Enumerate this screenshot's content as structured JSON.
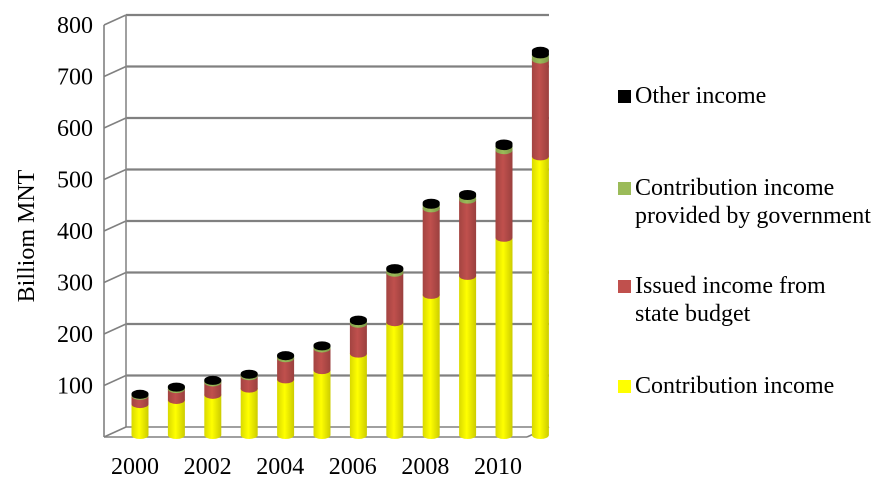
{
  "chart_data": {
    "type": "bar",
    "stacked": true,
    "ylabel": "Billiom MNT",
    "xlabel": "",
    "ylim": [
      0,
      800
    ],
    "yticks": [
      100,
      200,
      300,
      400,
      500,
      600,
      700,
      800
    ],
    "x_tick_labels": [
      "2000",
      "2002",
      "2004",
      "2006",
      "2008",
      "2010"
    ],
    "categories": [
      "2000",
      "2001",
      "2002",
      "2003",
      "2004",
      "2005",
      "2006",
      "2007",
      "2008",
      "2009",
      "2010",
      "2011"
    ],
    "series": [
      {
        "name": "Contribution income",
        "color": "#ffff00",
        "values": [
          60,
          68,
          78,
          90,
          108,
          126,
          158,
          219,
          272,
          309,
          383,
          541
        ]
      },
      {
        "name": "Issued income from state budget",
        "color": "#c0504d",
        "values": [
          16,
          21,
          24,
          24,
          41,
          42,
          58,
          96,
          168,
          148,
          170,
          188
        ]
      },
      {
        "name": "Contribution income provided by government",
        "color": "#9bbb59",
        "values": [
          2,
          3,
          3,
          3,
          4,
          4,
          5,
          6,
          7,
          7,
          8,
          10
        ]
      },
      {
        "name": "Other income",
        "color": "#000000",
        "values": [
          2,
          2,
          2,
          2,
          2,
          2,
          3,
          3,
          4,
          4,
          5,
          7
        ]
      }
    ],
    "grid": true,
    "legend_position": "right"
  }
}
